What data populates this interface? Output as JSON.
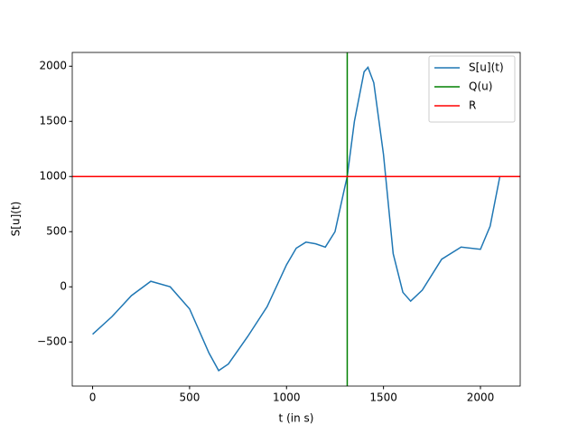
{
  "chart_data": {
    "type": "line",
    "x_label": "t (in s)",
    "y_label": "S[u](t)",
    "xlim": [
      -105,
      2205
    ],
    "ylim": [
      -900,
      2125
    ],
    "xticks": [
      0,
      500,
      1000,
      1500,
      2000
    ],
    "yticks": [
      {
        "value": -500,
        "label": "−500"
      },
      0,
      500,
      1000,
      1500,
      2000
    ],
    "legend": "upper right",
    "series": [
      {
        "name": "S[u](t)",
        "color": "#1f77b4",
        "x": [
          0,
          100,
          200,
          300,
          400,
          500,
          600,
          650,
          700,
          800,
          900,
          1000,
          1050,
          1100,
          1150,
          1200,
          1250,
          1300,
          1313,
          1350,
          1400,
          1420,
          1450,
          1500,
          1550,
          1600,
          1640,
          1700,
          1800,
          1900,
          2000,
          2050,
          2100
        ],
        "values": [
          -430,
          -270,
          -80,
          50,
          0,
          -200,
          -600,
          -760,
          -700,
          -450,
          -180,
          200,
          350,
          405,
          390,
          360,
          500,
          900,
          1000,
          1500,
          1950,
          1990,
          1850,
          1200,
          300,
          -50,
          -130,
          -30,
          250,
          360,
          340,
          550,
          1000
        ]
      },
      {
        "name": "Q(u)",
        "color": "green",
        "x_value": 1313
      },
      {
        "name": "R",
        "color": "red",
        "y_value": 1000
      }
    ]
  }
}
